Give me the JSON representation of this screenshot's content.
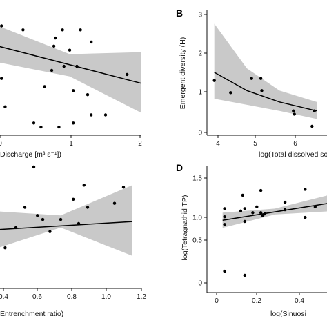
{
  "chart_data": [
    {
      "id": "A",
      "type": "scatter",
      "panel_letter": "",
      "xlabel": "Discharge [m³ s⁻¹])",
      "ylabel": "",
      "x_ticks": [
        "0",
        "1",
        "2"
      ],
      "y_ticks": [],
      "xlim": [
        0,
        2
      ],
      "ylim": [
        0,
        3
      ],
      "points": [
        [
          0.05,
          2.6
        ],
        [
          0.35,
          2.5
        ],
        [
          0.65,
          1.1
        ],
        [
          0.75,
          1.5
        ],
        [
          0.78,
          2.1
        ],
        [
          0.8,
          2.3
        ],
        [
          0.9,
          2.5
        ],
        [
          0.92,
          1.6
        ],
        [
          1.0,
          2.0
        ],
        [
          1.05,
          1.0
        ],
        [
          1.1,
          1.6
        ],
        [
          1.15,
          2.5
        ],
        [
          1.25,
          0.9
        ],
        [
          1.3,
          2.2
        ],
        [
          0.5,
          0.2
        ],
        [
          0.6,
          0.1
        ],
        [
          0.85,
          0.1
        ],
        [
          1.05,
          0.2
        ],
        [
          1.3,
          0.4
        ],
        [
          1.5,
          0.4
        ],
        [
          1.8,
          1.4
        ],
        [
          0.1,
          0.6
        ],
        [
          0.0,
          1.8
        ],
        [
          0.05,
          1.3
        ]
      ],
      "fit": [
        [
          0,
          2.1
        ],
        [
          2,
          1.18
        ]
      ],
      "ci_upper": [
        [
          0,
          2.6
        ],
        [
          1,
          1.9
        ],
        [
          2,
          1.95
        ]
      ],
      "ci_lower": [
        [
          0,
          1.7
        ],
        [
          1,
          1.35
        ],
        [
          2,
          0.45
        ]
      ]
    },
    {
      "id": "B",
      "type": "scatter",
      "panel_letter": "B",
      "xlabel": "log(Total dissolved so",
      "ylabel": "Emergent diversity (H)",
      "x_ticks": [
        "4",
        "5",
        "6"
      ],
      "y_ticks": [
        "0",
        "1",
        "2",
        "3"
      ],
      "xlim": [
        3.8,
        6.5
      ],
      "ylim": [
        0,
        3
      ],
      "points": [
        [
          3.9,
          1.25
        ],
        [
          4.25,
          0.95
        ],
        [
          4.7,
          1.3
        ],
        [
          4.9,
          1.3
        ],
        [
          4.92,
          1.0
        ],
        [
          5.6,
          0.5
        ],
        [
          5.62,
          0.42
        ],
        [
          6.0,
          0.12
        ],
        [
          6.05,
          0.5
        ]
      ],
      "fit": [
        [
          3.9,
          1.45
        ],
        [
          4.6,
          1.0
        ],
        [
          5.3,
          0.72
        ],
        [
          6.1,
          0.5
        ]
      ],
      "ci_upper": [
        [
          3.9,
          2.65
        ],
        [
          4.6,
          1.55
        ],
        [
          5.3,
          1.0
        ],
        [
          6.1,
          0.72
        ]
      ],
      "ci_lower": [
        [
          3.9,
          0.8
        ],
        [
          4.6,
          0.65
        ],
        [
          5.3,
          0.5
        ],
        [
          6.1,
          0.3
        ]
      ]
    },
    {
      "id": "C",
      "type": "scatter",
      "panel_letter": "",
      "xlabel": "Entrenchment  ratio)",
      "ylabel": "",
      "x_ticks": [
        "0.4",
        "0.6",
        "0.8",
        "1.0",
        "1.2"
      ],
      "y_ticks": [],
      "xlim": [
        0.4,
        1.2
      ],
      "ylim": [
        0,
        3
      ],
      "points": [
        [
          0.5,
          1.4
        ],
        [
          0.55,
          1.9
        ],
        [
          0.62,
          1.7
        ],
        [
          0.65,
          1.6
        ],
        [
          0.69,
          1.3
        ],
        [
          0.75,
          1.6
        ],
        [
          0.82,
          2.1
        ],
        [
          0.85,
          1.5
        ],
        [
          0.88,
          2.45
        ],
        [
          0.9,
          1.9
        ],
        [
          1.05,
          2.0
        ],
        [
          1.1,
          2.4
        ],
        [
          0.6,
          2.9
        ],
        [
          0.44,
          0.9
        ]
      ],
      "fit": [
        [
          0.4,
          1.35
        ],
        [
          1.15,
          1.55
        ]
      ],
      "ci_upper": [
        [
          0.4,
          1.8
        ],
        [
          0.75,
          1.7
        ],
        [
          1.15,
          2.45
        ]
      ],
      "ci_lower": [
        [
          0.4,
          0.9
        ],
        [
          0.75,
          1.4
        ],
        [
          1.15,
          0.7
        ]
      ]
    },
    {
      "id": "D",
      "type": "scatter",
      "panel_letter": "D",
      "xlabel": "log(Sinuosi",
      "ylabel": "log(Tetragnathid TP)",
      "x_ticks": [
        "0",
        "0.2",
        "0.4"
      ],
      "y_ticks": [
        "0",
        "0.5",
        "1.0",
        "1.5"
      ],
      "xlim": [
        -0.05,
        0.55
      ],
      "ylim": [
        -0.2,
        1.7
      ],
      "points": [
        [
          0.0,
          0.93
        ],
        [
          0.0,
          0.8
        ],
        [
          0.0,
          1.07
        ],
        [
          0.08,
          1.03
        ],
        [
          0.09,
          1.3
        ],
        [
          0.1,
          1.07
        ],
        [
          0.1,
          0.85
        ],
        [
          0.14,
          1.0
        ],
        [
          0.16,
          1.1
        ],
        [
          0.18,
          1.38
        ],
        [
          0.18,
          1.0
        ],
        [
          0.19,
          0.95
        ],
        [
          0.2,
          0.98
        ],
        [
          0.3,
          1.18
        ],
        [
          0.3,
          1.05
        ],
        [
          0.4,
          1.4
        ],
        [
          0.4,
          0.92
        ],
        [
          0.45,
          1.1
        ],
        [
          0.1,
          -0.07
        ],
        [
          0.0,
          0.0
        ]
      ],
      "fit": [
        [
          -0.01,
          0.87
        ],
        [
          0.55,
          1.18
        ]
      ],
      "ci_upper": [
        [
          -0.01,
          1.0
        ],
        [
          0.25,
          1.07
        ],
        [
          0.55,
          1.33
        ]
      ],
      "ci_lower": [
        [
          -0.01,
          0.74
        ],
        [
          0.25,
          0.97
        ],
        [
          0.55,
          1.03
        ]
      ]
    }
  ]
}
